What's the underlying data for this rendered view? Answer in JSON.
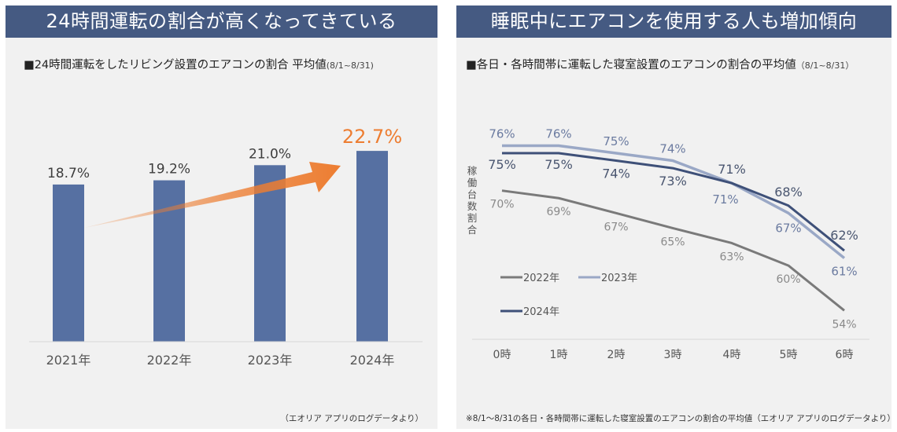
{
  "left": {
    "title": "24時間運転の割合が高くなってきている",
    "subtitle": "■24時間運転をしたリビング設置のエアコンの割合 平均値",
    "subtitle_range": "(8/1~8/31)",
    "source": "（エオリア アプリのログデータより）"
  },
  "right": {
    "title": "睡眠中にエアコンを使用する人も増加傾向",
    "subtitle": "■各日・各時間帯に運転した寝室設置のエアコンの割合の平均値",
    "subtitle_range": "（8/1~8/31）",
    "ylabel": "稼働台数割合",
    "footnote": "※8/1～8/31の各日・各時間帯に運転した寝室設置のエアコンの割合の平均値（エオリア アプリのログデータより）"
  },
  "colors": {
    "title_bar": "#455a82",
    "bar": "#5670a2",
    "highlight": "#ed7d31",
    "s2022": "#7a7a7a",
    "s2023": "#9aa8c6",
    "s2024": "#3e5078"
  },
  "chart_data": [
    {
      "type": "bar",
      "title": "■24時間運転をしたリビング設置のエアコンの割合 平均値(8/1~8/31)",
      "categories": [
        "2021年",
        "2022年",
        "2023年",
        "2024年"
      ],
      "values": [
        18.7,
        19.2,
        21.0,
        22.7
      ],
      "labels": [
        "18.7%",
        "19.2%",
        "21.0%",
        "22.7%"
      ],
      "highlight_index": 3,
      "annotation": "upward trend arrow",
      "xlabel": "",
      "ylabel": "",
      "ylim": [
        0,
        24
      ],
      "grid": false
    },
    {
      "type": "line",
      "title": "■各日・各時間帯に運転した寝室設置のエアコンの割合の平均値（8/1~8/31）",
      "x": [
        "0時",
        "1時",
        "2時",
        "3時",
        "4時",
        "5時",
        "6時"
      ],
      "series": [
        {
          "name": "2022年",
          "values": [
            70,
            69,
            67,
            65,
            63,
            60,
            54
          ]
        },
        {
          "name": "2023年",
          "values": [
            76,
            76,
            75,
            74,
            71,
            67,
            61
          ]
        },
        {
          "name": "2024年",
          "values": [
            75,
            75,
            74,
            73,
            71,
            68,
            62
          ]
        }
      ],
      "xlabel": "",
      "ylabel": "稼働台数割合",
      "legend": "bottom-left",
      "grid": false
    }
  ]
}
